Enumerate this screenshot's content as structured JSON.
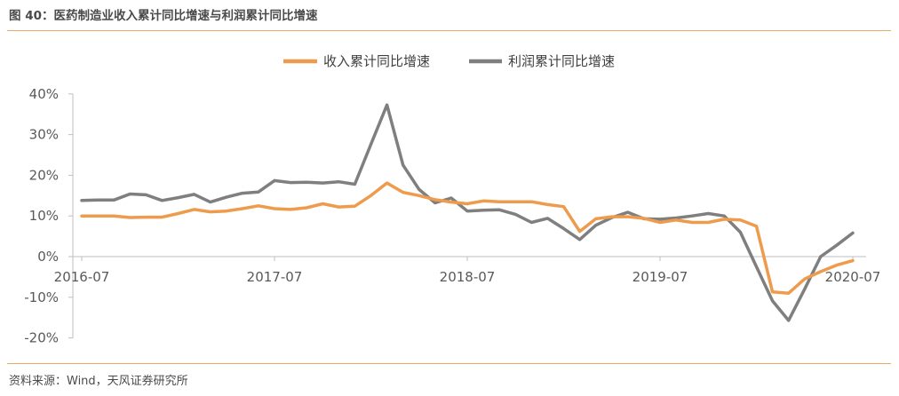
{
  "figure": {
    "title": "图 40：医药制造业收入累计同比增速与利润累计同比增速",
    "source": "资料来源：Wind，天风证券研究所"
  },
  "colors": {
    "revenue": "#ee9b4d",
    "profit": "#7f7f7f",
    "axis": "#bfbfbf",
    "rule": "#e8a866"
  },
  "chart_data": {
    "type": "line",
    "title": "",
    "xlabel": "",
    "ylabel": "",
    "ylim": [
      -20,
      40
    ],
    "yticks": [
      -20,
      -10,
      0,
      10,
      20,
      30,
      40
    ],
    "ytick_labels": [
      "-20%",
      "-10%",
      "0%",
      "10%",
      "20%",
      "30%",
      "40%"
    ],
    "xtick_labels": [
      "2016-07",
      "2017-07",
      "2018-07",
      "2019-07",
      "2020-07"
    ],
    "xtick_index": [
      0,
      12,
      24,
      36,
      48
    ],
    "x": [
      "2016-07",
      "2016-08",
      "2016-09",
      "2016-10",
      "2016-11",
      "2016-12",
      "2017-01",
      "2017-02",
      "2017-03",
      "2017-04",
      "2017-05",
      "2017-06",
      "2017-07",
      "2017-08",
      "2017-09",
      "2017-10",
      "2017-11",
      "2017-12",
      "2018-01",
      "2018-02",
      "2018-03",
      "2018-04",
      "2018-05",
      "2018-06",
      "2018-07",
      "2018-08",
      "2018-09",
      "2018-10",
      "2018-11",
      "2018-12",
      "2019-01",
      "2019-02",
      "2019-03",
      "2019-04",
      "2019-05",
      "2019-06",
      "2019-07",
      "2019-08",
      "2019-09",
      "2019-10",
      "2019-11",
      "2019-12",
      "2020-01",
      "2020-02",
      "2020-03",
      "2020-04",
      "2020-05",
      "2020-06",
      "2020-07"
    ],
    "legend": {
      "position": "top-center"
    },
    "series": [
      {
        "name": "收入累计同比增速",
        "color": "#ee9b4d",
        "values": [
          10.0,
          10.0,
          10.0,
          9.6,
          9.7,
          9.7,
          10.6,
          11.6,
          11.0,
          11.2,
          11.8,
          12.5,
          11.8,
          11.6,
          12.0,
          13.0,
          12.2,
          12.4,
          15.0,
          18.1,
          15.8,
          15.0,
          14.0,
          13.4,
          13.0,
          13.7,
          13.5,
          13.5,
          13.5,
          12.8,
          12.3,
          6.2,
          9.3,
          9.8,
          9.8,
          9.4,
          8.4,
          9.0,
          8.4,
          8.4,
          9.2,
          9.0,
          7.5,
          -8.7,
          -9.0,
          -5.5,
          -3.7,
          -2.1,
          -1.0
        ]
      },
      {
        "name": "利润累计同比增速",
        "color": "#7f7f7f",
        "values": [
          13.8,
          13.9,
          13.9,
          15.4,
          15.2,
          13.8,
          14.5,
          15.3,
          13.4,
          14.6,
          15.6,
          15.9,
          18.7,
          18.2,
          18.3,
          18.1,
          18.4,
          17.8,
          27.6,
          37.3,
          22.5,
          16.5,
          13.2,
          14.4,
          11.2,
          11.4,
          11.5,
          10.4,
          8.4,
          9.4,
          6.9,
          4.2,
          7.7,
          9.6,
          10.9,
          9.3,
          9.2,
          9.5,
          10.0,
          10.6,
          10.0,
          6.0,
          -2.5,
          -10.9,
          -15.7,
          -8.0,
          0.0,
          2.8,
          5.8
        ]
      }
    ]
  }
}
